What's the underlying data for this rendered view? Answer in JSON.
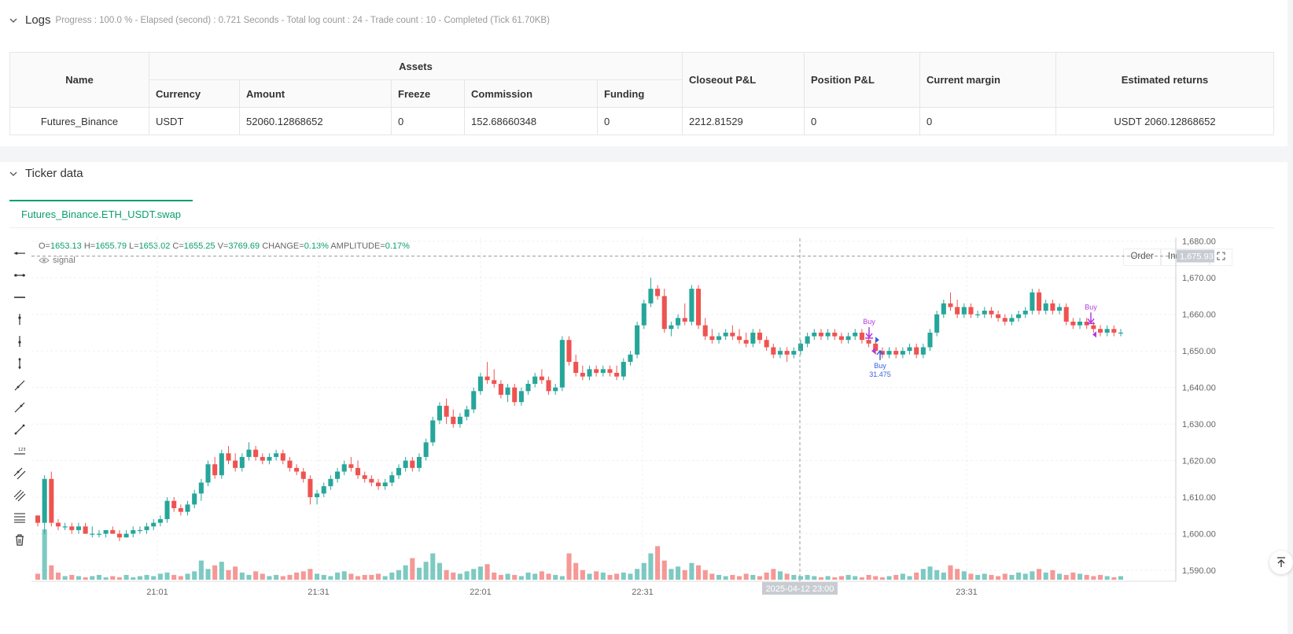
{
  "logs": {
    "title": "Logs",
    "summary": "Progress : 100.0 % - Elapsed (second) : 0.721  Seconds - Total log count : 24 - Trade count : 10 - Completed (Tick 61.70KB)"
  },
  "assets_table": {
    "headers": {
      "name": "Name",
      "assets": "Assets",
      "currency": "Currency",
      "amount": "Amount",
      "freeze": "Freeze",
      "commission": "Commission",
      "funding": "Funding",
      "closeout": "Closeout P&L",
      "position": "Position P&L",
      "margin": "Current margin",
      "returns": "Estimated returns"
    },
    "row": {
      "name": "Futures_Binance",
      "currency": "USDT",
      "amount": "52060.12868652",
      "freeze": "0",
      "commission": "152.68660348",
      "funding": "0",
      "closeout": "2212.81529",
      "position": "0",
      "margin": "0",
      "returns": "USDT 2060.12868652"
    }
  },
  "ticker": {
    "title": "Ticker data",
    "tab": "Futures_Binance.ETH_USDT.swap",
    "ohlc": {
      "o_label": "O=",
      "o": "1653.13",
      "h_label": "H=",
      "h": "1655.79",
      "l_label": "L=",
      "l": "1653.02",
      "c_label": "C=",
      "c": "1655.25",
      "v_label": "V=",
      "v": "3769.69",
      "change_label": "CHANGE=",
      "change": "0.13%",
      "amp_label": "AMPLITUDE=",
      "amp": "0.17%"
    },
    "signal_label": "signal",
    "buttons": {
      "order": "Order",
      "indicator": "Indicator"
    },
    "crosshair_time": "2025-04-12 23:00",
    "crosshair_price": "1,675.93"
  },
  "colors": {
    "up": "#26a69a",
    "down": "#ef5350",
    "accent": "#0a9e6f",
    "buy_purple": "#b23ae0",
    "buy_blue": "#3a5ee0"
  },
  "chart_data": {
    "type": "candlestick",
    "x_ticks": [
      "21:01",
      "21:31",
      "22:01",
      "22:31",
      "23:31"
    ],
    "y_ticks": [
      "1,680.00",
      "1,670.00",
      "1,660.00",
      "1,650.00",
      "1,640.00",
      "1,630.00",
      "1,620.00",
      "1,610.00",
      "1,600.00",
      "1,590.00"
    ],
    "ylim": [
      1587,
      1681
    ],
    "annotations": [
      {
        "label": "Buy",
        "price": 1653.5,
        "color": "purple"
      },
      {
        "label": "Buy",
        "sub": "31.475",
        "price": 1650.5,
        "color": "blue"
      },
      {
        "label": "Buy",
        "price": 1657.5,
        "color": "purple"
      }
    ],
    "candles": [
      [
        1605,
        1605,
        1602,
        1603
      ],
      [
        1603,
        1616,
        1600,
        1615
      ],
      [
        1615,
        1617,
        1602,
        1603
      ],
      [
        1603,
        1604,
        1601,
        1602
      ],
      [
        1602,
        1603,
        1601,
        1602
      ],
      [
        1602,
        1603,
        1600,
        1601
      ],
      [
        1601,
        1603,
        1600,
        1602
      ],
      [
        1602,
        1603,
        1600,
        1600
      ],
      [
        1600,
        1602,
        1599,
        1600
      ],
      [
        1600,
        1601,
        1599,
        1600
      ],
      [
        1600,
        1601,
        1599,
        1601
      ],
      [
        1601,
        1602,
        1600,
        1600
      ],
      [
        1600,
        1601,
        1598,
        1599
      ],
      [
        1599,
        1601,
        1599,
        1600
      ],
      [
        1600,
        1602,
        1599,
        1601
      ],
      [
        1601,
        1602,
        1600,
        1601
      ],
      [
        1601,
        1603,
        1600,
        1602
      ],
      [
        1602,
        1604,
        1601,
        1603
      ],
      [
        1603,
        1605,
        1602,
        1604
      ],
      [
        1604,
        1610,
        1603,
        1609
      ],
      [
        1609,
        1610,
        1606,
        1607
      ],
      [
        1607,
        1608,
        1605,
        1606
      ],
      [
        1606,
        1609,
        1605,
        1608
      ],
      [
        1608,
        1612,
        1607,
        1611
      ],
      [
        1611,
        1615,
        1609,
        1614
      ],
      [
        1614,
        1620,
        1613,
        1619
      ],
      [
        1619,
        1621,
        1615,
        1616
      ],
      [
        1616,
        1623,
        1615,
        1622
      ],
      [
        1622,
        1624,
        1619,
        1620
      ],
      [
        1620,
        1622,
        1617,
        1618
      ],
      [
        1618,
        1622,
        1617,
        1621
      ],
      [
        1621,
        1625,
        1620,
        1623
      ],
      [
        1623,
        1624,
        1620,
        1621
      ],
      [
        1621,
        1622,
        1619,
        1620
      ],
      [
        1620,
        1622,
        1619,
        1621
      ],
      [
        1621,
        1623,
        1620,
        1622
      ],
      [
        1622,
        1623,
        1619,
        1620
      ],
      [
        1620,
        1621,
        1617,
        1618
      ],
      [
        1618,
        1619,
        1616,
        1617
      ],
      [
        1617,
        1618,
        1614,
        1615
      ],
      [
        1615,
        1616,
        1608,
        1610
      ],
      [
        1610,
        1612,
        1608,
        1611
      ],
      [
        1611,
        1614,
        1610,
        1613
      ],
      [
        1613,
        1616,
        1612,
        1615
      ],
      [
        1615,
        1618,
        1614,
        1617
      ],
      [
        1617,
        1620,
        1616,
        1619
      ],
      [
        1619,
        1621,
        1617,
        1618
      ],
      [
        1618,
        1620,
        1615,
        1616
      ],
      [
        1616,
        1617,
        1614,
        1615
      ],
      [
        1615,
        1616,
        1613,
        1614
      ],
      [
        1614,
        1615,
        1612,
        1613
      ],
      [
        1613,
        1615,
        1612,
        1614
      ],
      [
        1614,
        1617,
        1613,
        1616
      ],
      [
        1616,
        1619,
        1615,
        1618
      ],
      [
        1618,
        1621,
        1617,
        1620
      ],
      [
        1620,
        1621,
        1617,
        1618
      ],
      [
        1618,
        1622,
        1617,
        1621
      ],
      [
        1621,
        1626,
        1620,
        1625
      ],
      [
        1625,
        1632,
        1624,
        1631
      ],
      [
        1631,
        1636,
        1630,
        1635
      ],
      [
        1635,
        1637,
        1630,
        1632
      ],
      [
        1632,
        1634,
        1629,
        1630
      ],
      [
        1630,
        1633,
        1629,
        1632
      ],
      [
        1632,
        1635,
        1631,
        1634
      ],
      [
        1634,
        1640,
        1633,
        1639
      ],
      [
        1639,
        1644,
        1638,
        1643
      ],
      [
        1643,
        1647,
        1641,
        1642
      ],
      [
        1642,
        1645,
        1640,
        1641
      ],
      [
        1641,
        1642,
        1637,
        1638
      ],
      [
        1638,
        1641,
        1636,
        1640
      ],
      [
        1640,
        1641,
        1635,
        1636
      ],
      [
        1636,
        1640,
        1635,
        1639
      ],
      [
        1639,
        1642,
        1638,
        1641
      ],
      [
        1641,
        1644,
        1640,
        1643
      ],
      [
        1643,
        1645,
        1641,
        1642
      ],
      [
        1642,
        1643,
        1638,
        1639
      ],
      [
        1639,
        1641,
        1638,
        1640
      ],
      [
        1640,
        1654,
        1639,
        1653
      ],
      [
        1653,
        1654,
        1646,
        1647
      ],
      [
        1647,
        1649,
        1643,
        1644
      ],
      [
        1644,
        1646,
        1642,
        1643
      ],
      [
        1643,
        1646,
        1642,
        1645
      ],
      [
        1645,
        1646,
        1643,
        1644
      ],
      [
        1644,
        1646,
        1643,
        1645
      ],
      [
        1645,
        1646,
        1643,
        1644
      ],
      [
        1644,
        1646,
        1642,
        1643
      ],
      [
        1643,
        1648,
        1642,
        1647
      ],
      [
        1647,
        1650,
        1646,
        1649
      ],
      [
        1649,
        1658,
        1648,
        1657
      ],
      [
        1657,
        1664,
        1656,
        1663
      ],
      [
        1663,
        1670,
        1662,
        1667
      ],
      [
        1667,
        1668,
        1664,
        1665
      ],
      [
        1665,
        1667,
        1655,
        1656
      ],
      [
        1656,
        1658,
        1654,
        1657
      ],
      [
        1657,
        1660,
        1656,
        1659
      ],
      [
        1659,
        1663,
        1657,
        1658
      ],
      [
        1658,
        1668,
        1657,
        1667
      ],
      [
        1667,
        1668,
        1656,
        1657
      ],
      [
        1657,
        1659,
        1653,
        1654
      ],
      [
        1654,
        1656,
        1652,
        1653
      ],
      [
        1653,
        1655,
        1652,
        1654
      ],
      [
        1654,
        1656,
        1653,
        1655
      ],
      [
        1655,
        1657,
        1653,
        1654
      ],
      [
        1654,
        1656,
        1652,
        1653
      ],
      [
        1653,
        1655,
        1651,
        1652
      ],
      [
        1652,
        1656,
        1651,
        1655
      ],
      [
        1655,
        1656,
        1652,
        1653
      ],
      [
        1653,
        1654,
        1650,
        1651
      ],
      [
        1651,
        1652,
        1648,
        1649
      ],
      [
        1649,
        1651,
        1648,
        1650
      ],
      [
        1650,
        1651,
        1647,
        1649
      ],
      [
        1649,
        1651,
        1648,
        1650
      ],
      [
        1650,
        1653,
        1649,
        1652
      ],
      [
        1652,
        1655,
        1651,
        1654
      ],
      [
        1654,
        1656,
        1653,
        1655
      ],
      [
        1655,
        1656,
        1653,
        1654
      ],
      [
        1654,
        1656,
        1653,
        1655
      ],
      [
        1655,
        1656,
        1653,
        1654
      ],
      [
        1654,
        1655,
        1652,
        1653
      ],
      [
        1653,
        1655,
        1652,
        1654
      ],
      [
        1654,
        1656,
        1653,
        1655
      ],
      [
        1655,
        1656,
        1652,
        1653
      ],
      [
        1653,
        1655,
        1651,
        1652
      ],
      [
        1652,
        1653,
        1649,
        1650
      ],
      [
        1650,
        1651,
        1648,
        1649
      ],
      [
        1649,
        1651,
        1648,
        1650
      ],
      [
        1650,
        1651,
        1648,
        1649
      ],
      [
        1649,
        1651,
        1648,
        1650
      ],
      [
        1650,
        1652,
        1649,
        1651
      ],
      [
        1651,
        1652,
        1648,
        1649
      ],
      [
        1649,
        1652,
        1648,
        1651
      ],
      [
        1651,
        1656,
        1650,
        1655
      ],
      [
        1655,
        1661,
        1654,
        1660
      ],
      [
        1660,
        1664,
        1659,
        1663
      ],
      [
        1663,
        1666,
        1661,
        1662
      ],
      [
        1662,
        1664,
        1659,
        1660
      ],
      [
        1660,
        1663,
        1659,
        1662
      ],
      [
        1662,
        1663,
        1659,
        1660
      ],
      [
        1660,
        1661,
        1659,
        1660
      ],
      [
        1660,
        1662,
        1659,
        1661
      ],
      [
        1661,
        1662,
        1659,
        1660
      ],
      [
        1660,
        1661,
        1658,
        1659
      ],
      [
        1659,
        1660,
        1657,
        1658
      ],
      [
        1658,
        1660,
        1657,
        1659
      ],
      [
        1659,
        1661,
        1658,
        1660
      ],
      [
        1660,
        1662,
        1659,
        1661
      ],
      [
        1661,
        1667,
        1660,
        1666
      ],
      [
        1666,
        1667,
        1660,
        1661
      ],
      [
        1661,
        1664,
        1660,
        1663
      ],
      [
        1663,
        1664,
        1660,
        1661
      ],
      [
        1661,
        1663,
        1660,
        1662
      ],
      [
        1662,
        1663,
        1657,
        1658
      ],
      [
        1658,
        1659,
        1656,
        1657
      ],
      [
        1657,
        1659,
        1656,
        1658
      ],
      [
        1658,
        1659,
        1656,
        1657
      ],
      [
        1657,
        1658,
        1655,
        1656
      ],
      [
        1656,
        1657,
        1654,
        1655
      ],
      [
        1655,
        1657,
        1654,
        1656
      ],
      [
        1656,
        1657,
        1654,
        1655
      ],
      [
        1655,
        1656,
        1654,
        1655
      ]
    ],
    "volumes": [
      5,
      42,
      12,
      6,
      3,
      4,
      3,
      2,
      3,
      4,
      2,
      3,
      2,
      4,
      2,
      3,
      4,
      3,
      5,
      6,
      4,
      3,
      5,
      7,
      16,
      9,
      12,
      15,
      8,
      11,
      6,
      4,
      7,
      5,
      3,
      4,
      3,
      4,
      6,
      7,
      9,
      5,
      4,
      3,
      6,
      7,
      5,
      3,
      4,
      4,
      5,
      3,
      6,
      8,
      12,
      18,
      10,
      15,
      22,
      14,
      8,
      6,
      5,
      7,
      9,
      11,
      13,
      6,
      4,
      5,
      4,
      3,
      6,
      5,
      7,
      5,
      4,
      3,
      22,
      14,
      8,
      5,
      7,
      6,
      4,
      5,
      6,
      5,
      9,
      14,
      22,
      28,
      16,
      9,
      11,
      8,
      14,
      12,
      8,
      5,
      4,
      3,
      4,
      3,
      5,
      4,
      3,
      6,
      9,
      7,
      5,
      4,
      3,
      4,
      3,
      2,
      3,
      2,
      3,
      4,
      3,
      2,
      4,
      3,
      2,
      3,
      4,
      5,
      3,
      6,
      9,
      11,
      8,
      6,
      12,
      9,
      7,
      5,
      4,
      5,
      4,
      3,
      5,
      4,
      6,
      5,
      7,
      9,
      6,
      8,
      5,
      4,
      6,
      5,
      4,
      3,
      4,
      3,
      2,
      3
    ]
  }
}
